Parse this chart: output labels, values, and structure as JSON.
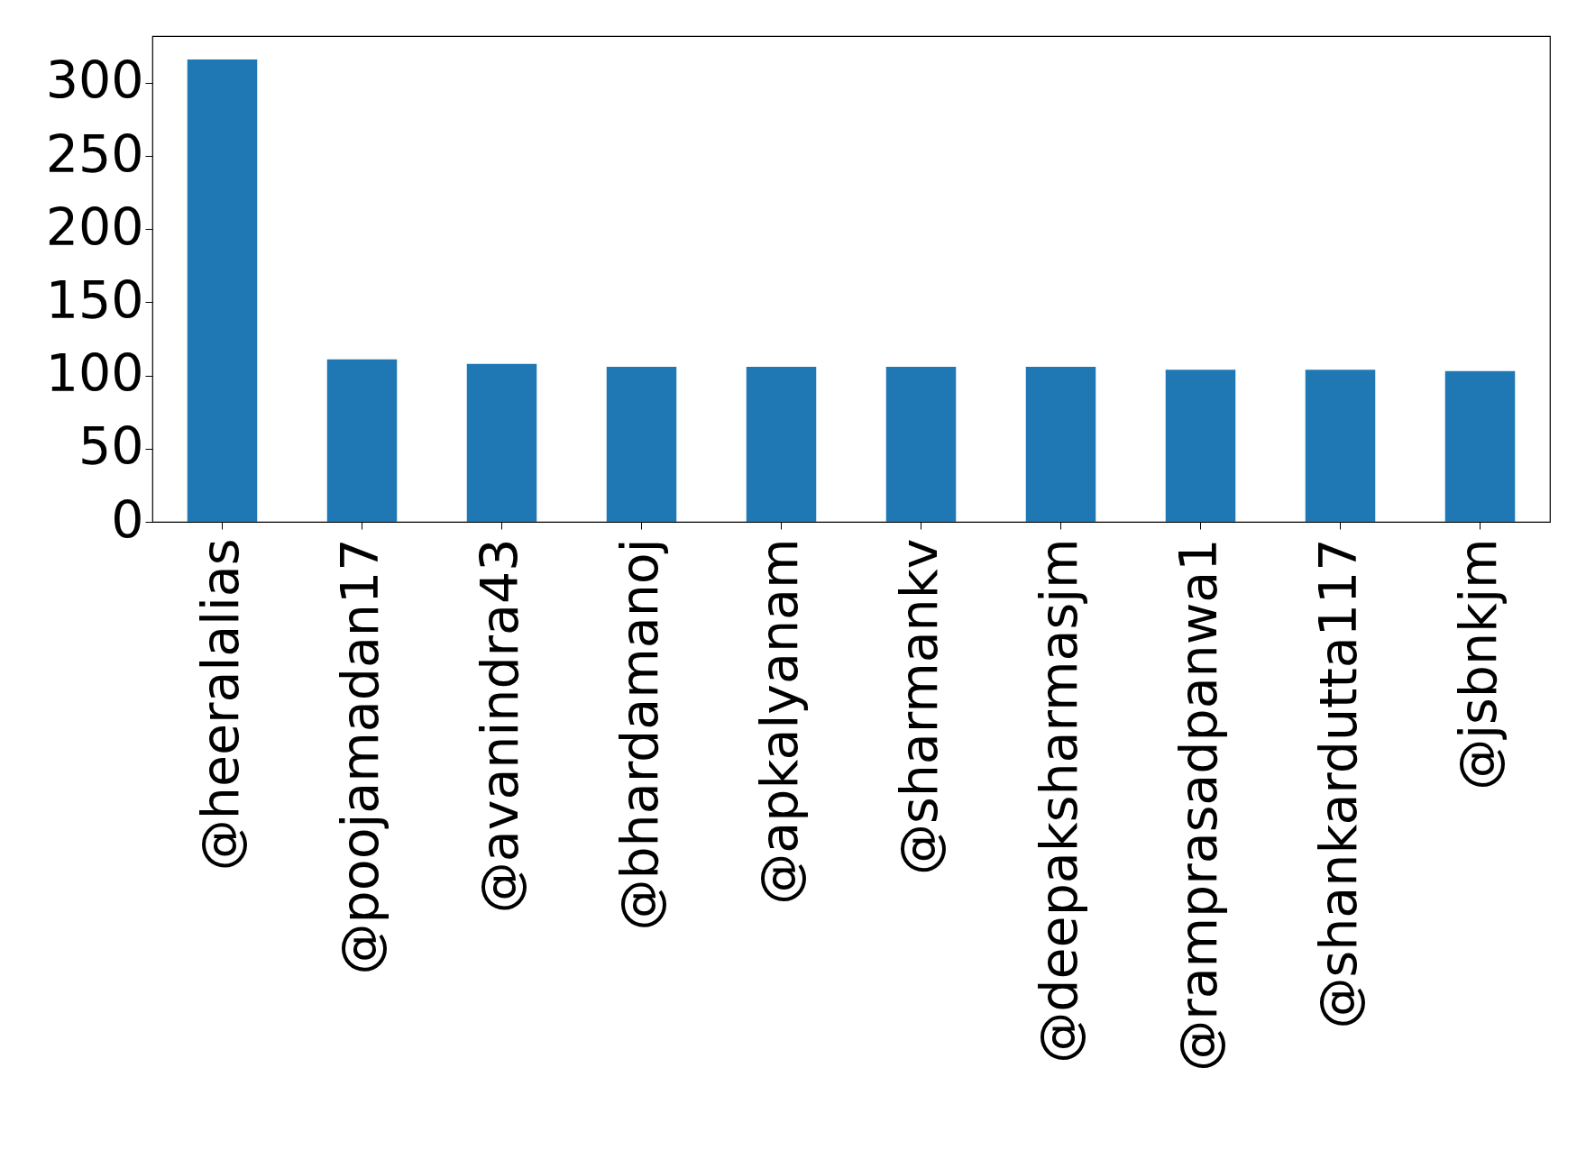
{
  "chart_data": {
    "type": "bar",
    "categories": [
      "@heeralalias",
      "@poojamadan17",
      "@avanindra43",
      "@bhardamanoj",
      "@apkalyanam",
      "@sharmankv",
      "@deepaksharmasjm",
      "@ramprasadpanwa1",
      "@shankardutta117",
      "@jsbnkjm"
    ],
    "values": [
      316,
      111,
      108,
      106,
      106,
      106,
      106,
      104,
      104,
      103
    ],
    "color": "#1f77b4",
    "ylim": [
      0,
      332
    ],
    "yticks": [
      0,
      50,
      100,
      150,
      200,
      250,
      300
    ],
    "grid": false
  }
}
